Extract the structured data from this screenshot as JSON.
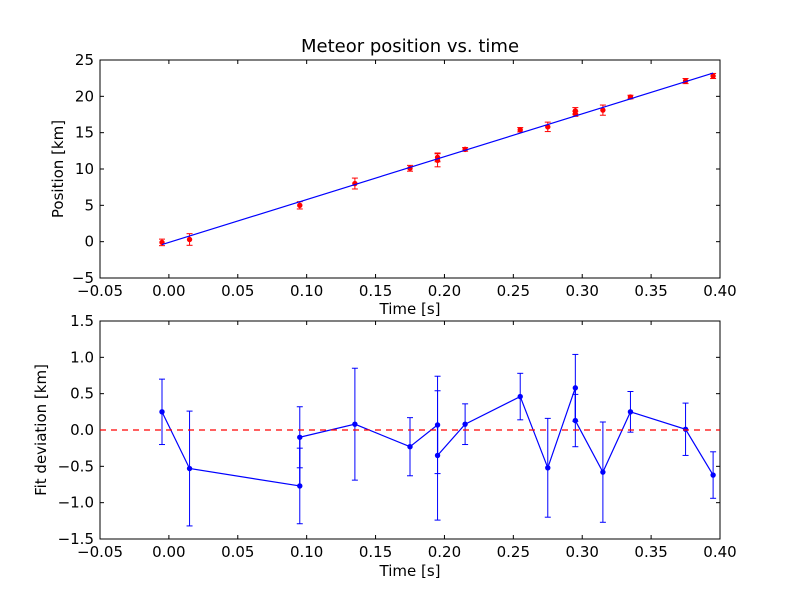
{
  "chart_data": [
    {
      "type": "scatter",
      "title": "Meteor position vs. time",
      "xlabel": "Time [s]",
      "ylabel": "Position [km]",
      "xlim": [
        -0.05,
        0.4
      ],
      "ylim": [
        -5,
        25
      ],
      "xticks": [
        -0.05,
        0.0,
        0.05,
        0.1,
        0.15,
        0.2,
        0.25,
        0.3,
        0.35,
        0.4
      ],
      "xtick_labels": [
        "−0.05",
        "0.00",
        "0.05",
        "0.10",
        "0.15",
        "0.20",
        "0.25",
        "0.30",
        "0.35",
        "0.40"
      ],
      "yticks": [
        -5,
        0,
        5,
        10,
        15,
        20,
        25
      ],
      "ytick_labels": [
        "−5",
        "0",
        "5",
        "10",
        "15",
        "20",
        "25"
      ],
      "grid": false,
      "series": [
        {
          "kind": "errorbar-points",
          "color": "#ff0000",
          "x": [
            -0.005,
            0.015,
            0.095,
            0.135,
            0.175,
            0.195,
            0.195,
            0.215,
            0.255,
            0.275,
            0.295,
            0.295,
            0.315,
            0.335,
            0.375,
            0.395
          ],
          "y": [
            -0.1,
            0.3,
            5.0,
            8.0,
            10.1,
            11.2,
            11.6,
            12.7,
            15.4,
            15.8,
            17.6,
            18.0,
            18.1,
            19.9,
            22.1,
            22.8
          ],
          "err": [
            0.45,
            0.8,
            0.5,
            0.75,
            0.4,
            0.9,
            0.6,
            0.25,
            0.3,
            0.65,
            0.35,
            0.45,
            0.7,
            0.25,
            0.35,
            0.35
          ]
        },
        {
          "kind": "line",
          "color": "#0000ff",
          "x": [
            -0.005,
            0.395
          ],
          "y": [
            -0.4,
            23.2
          ]
        }
      ]
    },
    {
      "type": "line",
      "title": "",
      "xlabel": "Time [s]",
      "ylabel": "Fit deviation [km]",
      "xlim": [
        -0.05,
        0.4
      ],
      "ylim": [
        -1.5,
        1.5
      ],
      "xticks": [
        -0.05,
        0.0,
        0.05,
        0.1,
        0.15,
        0.2,
        0.25,
        0.3,
        0.35,
        0.4
      ],
      "xtick_labels": [
        "−0.05",
        "0.00",
        "0.05",
        "0.10",
        "0.15",
        "0.20",
        "0.25",
        "0.30",
        "0.35",
        "0.40"
      ],
      "yticks": [
        -1.5,
        -1.0,
        -0.5,
        0.0,
        0.5,
        1.0,
        1.5
      ],
      "ytick_labels": [
        "−1.5",
        "−1.0",
        "−0.5",
        "0.0",
        "0.5",
        "1.0",
        "1.5"
      ],
      "grid": false,
      "series": [
        {
          "kind": "errorbar-line",
          "color": "#0000ff",
          "x": [
            -0.005,
            0.015,
            0.095,
            0.095,
            0.135,
            0.175,
            0.195,
            0.195,
            0.215,
            0.255,
            0.275,
            0.295,
            0.295,
            0.315,
            0.335,
            0.375,
            0.395
          ],
          "y": [
            0.25,
            -0.53,
            -0.77,
            -0.1,
            0.08,
            -0.23,
            0.07,
            -0.35,
            0.08,
            0.46,
            -0.52,
            0.58,
            0.13,
            -0.58,
            0.25,
            0.01,
            -0.62
          ],
          "err": [
            0.45,
            0.79,
            0.52,
            0.42,
            0.77,
            0.4,
            0.67,
            0.89,
            0.28,
            0.32,
            0.68,
            0.46,
            0.36,
            0.69,
            0.28,
            0.36,
            0.32
          ]
        },
        {
          "kind": "reference-line",
          "color": "#ff0000",
          "dashed": true,
          "y": 0.0
        }
      ]
    }
  ]
}
